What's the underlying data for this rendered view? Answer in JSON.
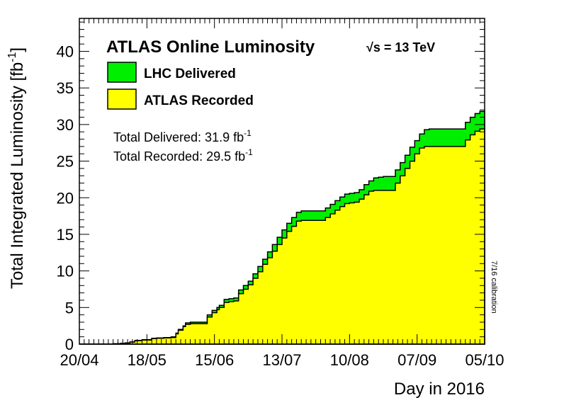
{
  "chart_data": {
    "type": "area",
    "title": "ATLAS Online Luminosity",
    "energy_label": "√s = 13 TeV",
    "xlabel": "Day in 2016",
    "ylabel": "Total Integrated Luminosity [fb",
    "ylabel_sup": "-1",
    "ylabel_close": "]",
    "x_tick_labels": [
      "20/04",
      "18/05",
      "15/06",
      "13/07",
      "10/08",
      "07/09",
      "05/10"
    ],
    "x_ticks_day": [
      0,
      28,
      56,
      84,
      112,
      140,
      168
    ],
    "xlim": [
      0,
      168
    ],
    "ylim": [
      0,
      44.5
    ],
    "y_ticks": [
      0,
      5,
      10,
      15,
      20,
      25,
      30,
      35,
      40
    ],
    "y_tick_labels": [
      "0",
      "5",
      "10",
      "15",
      "20",
      "25",
      "30",
      "35",
      "40"
    ],
    "grid": false,
    "legend_position": "top-left",
    "totals": {
      "delivered_text": "Total Delivered: 31.9 fb",
      "delivered_sup": "-1",
      "recorded_text": "Total Recorded: 29.5 fb",
      "recorded_sup": "-1"
    },
    "annotation": "7/16 calibration",
    "series": [
      {
        "name": "LHC Delivered",
        "color": "#00ee00",
        "x": [
          0,
          8,
          14,
          17,
          19,
          21,
          23,
          26,
          30,
          32,
          35,
          38,
          40,
          41,
          43,
          44,
          46,
          48,
          50,
          53,
          55,
          57,
          58,
          60,
          62,
          64,
          66,
          68,
          70,
          72,
          74,
          76,
          78,
          80,
          82,
          84,
          86,
          88,
          90,
          92,
          94,
          96,
          98,
          102,
          104,
          106,
          108,
          110,
          112,
          114,
          116,
          118,
          120,
          122,
          124,
          126,
          128,
          131,
          133,
          135,
          137,
          139,
          141,
          143,
          145,
          150,
          158,
          160,
          162,
          164,
          166,
          168
        ],
        "values": [
          0,
          0,
          0.05,
          0.1,
          0.15,
          0.3,
          0.5,
          0.6,
          0.8,
          0.85,
          0.9,
          1.0,
          1.5,
          2.0,
          2.5,
          2.9,
          3.0,
          3.0,
          3.0,
          4.0,
          4.6,
          5.0,
          5.3,
          6.1,
          6.2,
          6.3,
          7.4,
          8.0,
          8.6,
          9.6,
          10.6,
          11.6,
          12.6,
          13.6,
          14.6,
          15.6,
          16.5,
          17.3,
          18.0,
          18.2,
          18.2,
          18.2,
          18.2,
          18.6,
          19.1,
          19.6,
          20.1,
          20.5,
          20.6,
          20.7,
          21.1,
          21.8,
          22.3,
          22.7,
          22.8,
          22.9,
          22.9,
          23.8,
          24.8,
          25.8,
          26.9,
          27.8,
          28.7,
          29.3,
          29.4,
          29.4,
          29.4,
          30.3,
          31.0,
          31.5,
          31.8,
          31.9
        ]
      },
      {
        "name": "ATLAS Recorded",
        "color": "#ffff00",
        "x": [
          0,
          8,
          14,
          17,
          19,
          21,
          23,
          26,
          30,
          32,
          35,
          38,
          40,
          41,
          43,
          44,
          46,
          48,
          50,
          53,
          55,
          57,
          58,
          60,
          62,
          64,
          66,
          68,
          70,
          72,
          74,
          76,
          78,
          80,
          82,
          84,
          86,
          88,
          90,
          92,
          94,
          96,
          98,
          102,
          104,
          106,
          108,
          110,
          112,
          114,
          116,
          118,
          120,
          122,
          124,
          126,
          128,
          131,
          133,
          135,
          137,
          139,
          141,
          143,
          145,
          150,
          158,
          160,
          162,
          164,
          166,
          168
        ],
        "values": [
          0,
          0,
          0.05,
          0.1,
          0.15,
          0.28,
          0.45,
          0.55,
          0.75,
          0.8,
          0.85,
          0.9,
          1.4,
          1.9,
          2.4,
          2.7,
          2.8,
          2.8,
          2.8,
          3.7,
          4.3,
          4.7,
          5.0,
          5.7,
          5.8,
          5.9,
          6.9,
          7.5,
          8.1,
          9.0,
          9.9,
          10.9,
          11.8,
          12.7,
          13.6,
          14.5,
          15.4,
          16.1,
          16.8,
          16.9,
          16.9,
          16.9,
          16.9,
          17.3,
          17.8,
          18.3,
          18.8,
          19.2,
          19.3,
          19.4,
          19.8,
          20.4,
          20.9,
          21.0,
          21.0,
          21.0,
          21.0,
          22.0,
          23.0,
          24.0,
          25.0,
          26.0,
          26.8,
          27.0,
          27.0,
          27.0,
          27.0,
          27.9,
          28.6,
          29.1,
          29.4,
          29.5
        ]
      }
    ]
  }
}
